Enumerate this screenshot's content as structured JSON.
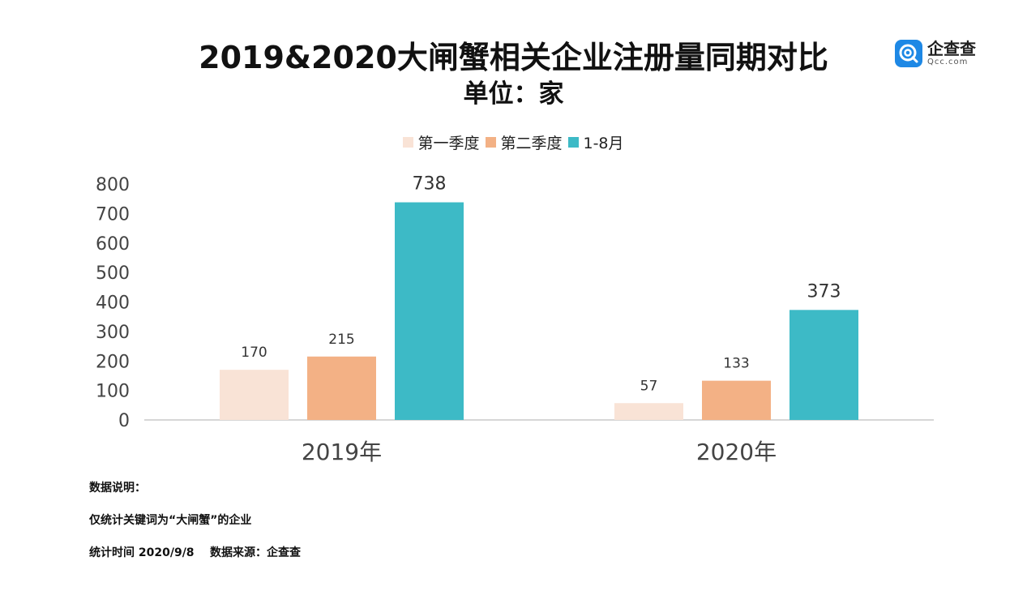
{
  "header": {
    "title": "2019&2020大闸蟹相关企业注册量同期对比",
    "subtitle": "单位：家"
  },
  "logo": {
    "name_cn": "企查查",
    "name_en": "Qcc.com",
    "icon": "qcc-logo-icon"
  },
  "colors": {
    "q1": "#f9e3d6",
    "q2": "#f3b185",
    "jan_aug": "#3dbac6",
    "axis": "#c8c8c8",
    "logo_blue": "#1e88e5"
  },
  "chart_data": {
    "type": "bar",
    "title": "2019&2020大闸蟹相关企业注册量同期对比",
    "subtitle": "单位：家",
    "categories": [
      "2019年",
      "2020年"
    ],
    "series": [
      {
        "name": "第一季度",
        "values": [
          170,
          57
        ]
      },
      {
        "name": "第二季度",
        "values": [
          215,
          133
        ]
      },
      {
        "name": "1-8月",
        "values": [
          738,
          373
        ]
      }
    ],
    "ylim": [
      0,
      800
    ],
    "yticks": [
      "800",
      "700",
      "600",
      "500",
      "400",
      "300",
      "200",
      "100",
      "0"
    ],
    "grid": false,
    "legend": "top-center",
    "xlabel": "",
    "ylabel": ""
  },
  "notes": {
    "heading": "数据说明：",
    "line1": "仅统计关键词为“大闸蟹”的企业",
    "line2": "统计时间 2020/9/8    数据来源：企查查"
  }
}
